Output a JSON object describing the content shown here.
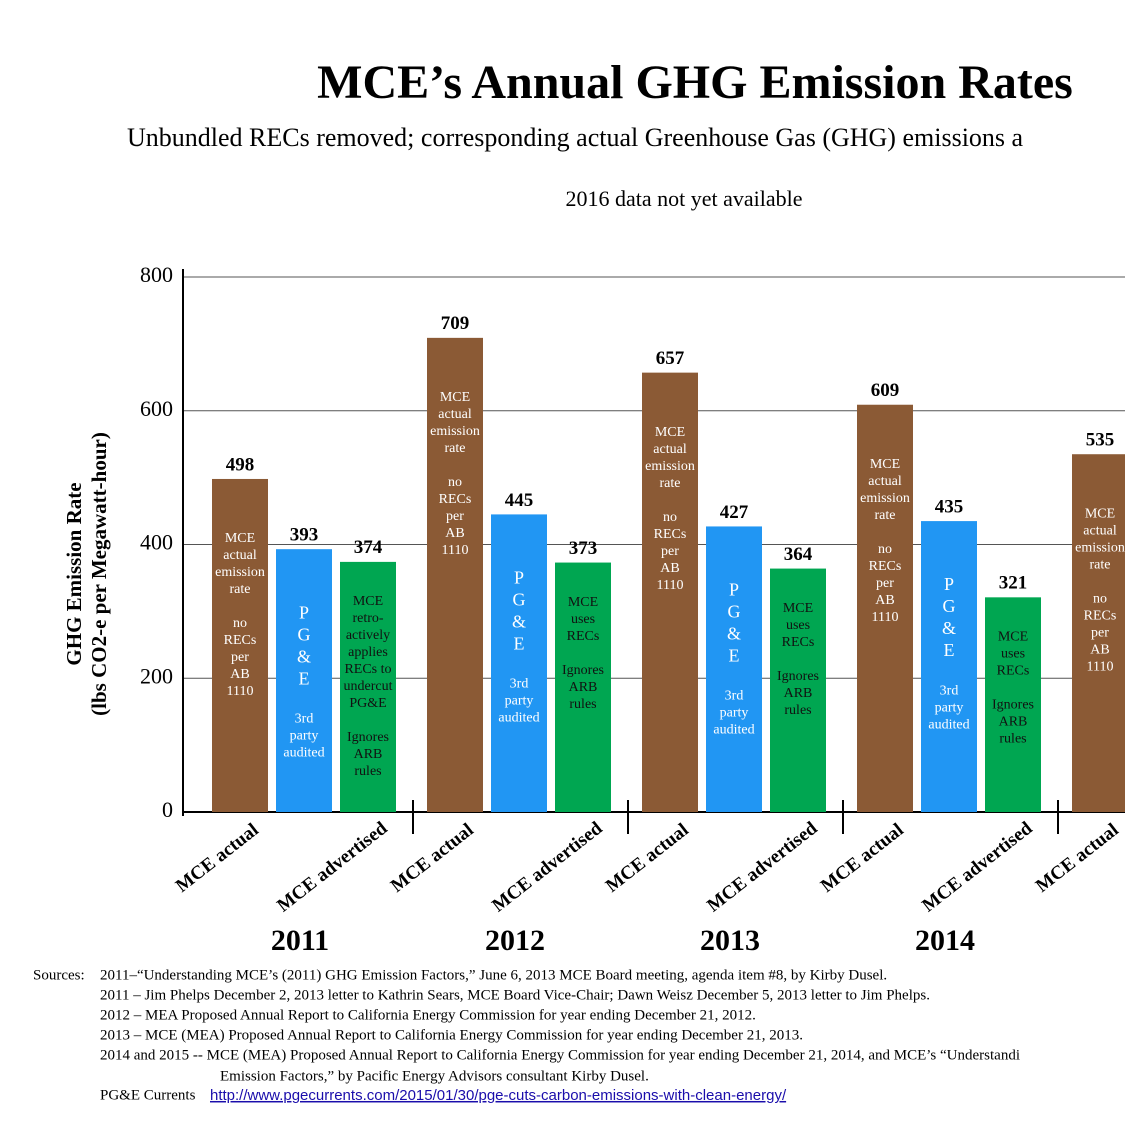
{
  "chart_data": {
    "type": "bar",
    "title": "MCE’s Annual GHG Emission Rates",
    "subtitle": "Unbundled RECs removed; corresponding actual Greenhouse Gas (GHG) emissions a",
    "note": "2016 data not yet available",
    "y_label": [
      "GHG Emission Rate",
      "(lbs CO2-e per Megawatt-hour)"
    ],
    "categories": [
      "2011",
      "2012",
      "2013",
      "2014",
      null
    ],
    "x_sublabels": [
      "MCE  actual",
      "MCE advertised"
    ],
    "series": [
      {
        "color": "#8b5a35",
        "text_color": "#ffffff",
        "values": [
          498,
          709,
          657,
          609,
          535
        ],
        "bar_text": [
          [
            [
              "MCE",
              "actual",
              "emission",
              "rate"
            ],
            [
              "no",
              "RECs",
              "per",
              "AB",
              "1110"
            ]
          ],
          [
            [
              "MCE",
              "actual",
              "emission",
              "rate"
            ],
            [
              "no",
              "RECs",
              "per",
              "AB",
              "1110"
            ]
          ],
          [
            [
              "MCE",
              "actual",
              "emission",
              "rate"
            ],
            [
              "no",
              "RECs",
              "per",
              "AB",
              "1110"
            ]
          ],
          [
            [
              "MCE",
              "actual",
              "emission",
              "rate"
            ],
            [
              "no",
              "RECs",
              "per",
              "AB",
              "1110"
            ]
          ],
          [
            [
              "MCE",
              "actual",
              "emission",
              "rate"
            ],
            [
              "no",
              "RECs",
              "per",
              "AB",
              "1110"
            ]
          ]
        ]
      },
      {
        "color": "#2196f3",
        "text_color": "#ffffff",
        "values": [
          393,
          445,
          427,
          435,
          null
        ],
        "bar_text": [
          [
            [
              "P",
              "G",
              "&",
              "E"
            ],
            [
              "3rd",
              "party",
              "audited"
            ]
          ],
          [
            [
              "P",
              "G",
              "&",
              "E"
            ],
            [
              "3rd",
              "party",
              "audited"
            ]
          ],
          [
            [
              "P",
              "G",
              "&",
              "E"
            ],
            [
              "3rd",
              "party",
              "audited"
            ]
          ],
          [
            [
              "P",
              "G",
              "&",
              "E"
            ],
            [
              "3rd",
              "party",
              "audited"
            ]
          ],
          null
        ]
      },
      {
        "color": "#00a651",
        "text_color": "#111111",
        "values": [
          374,
          373,
          364,
          321,
          null
        ],
        "bar_text": [
          [
            [
              "MCE",
              "retro-",
              "actively",
              "applies",
              "RECs to",
              "undercut",
              "PG&E"
            ],
            [
              "Ignores",
              "ARB",
              "rules"
            ]
          ],
          [
            [
              "MCE",
              "uses",
              "RECs"
            ],
            [
              "Ignores",
              "ARB",
              "rules"
            ]
          ],
          [
            [
              "MCE",
              "uses",
              "RECs"
            ],
            [
              "Ignores",
              "ARB",
              "rules"
            ]
          ],
          [
            [
              "MCE",
              "uses",
              "RECs"
            ],
            [
              "Ignores",
              "ARB",
              "rules"
            ]
          ],
          null
        ]
      }
    ],
    "ylim": [
      0,
      800
    ],
    "yticks": [
      0,
      200,
      400,
      600,
      800
    ],
    "grid": true
  },
  "sources": {
    "label": "Sources:",
    "lines": [
      "2011–“Understanding MCE’s (2011) GHG Emission Factors,” June 6, 2013 MCE Board meeting, agenda item #8, by Kirby Dusel.",
      "2011 – Jim Phelps December 2, 2013 letter to Kathrin Sears, MCE Board Vice-Chair;  Dawn Weisz December 5, 2013 letter to Jim Phelps.",
      "2012 – MEA Proposed Annual Report to California Energy Commission for year ending December 21, 2012.",
      "2013 – MCE (MEA) Proposed Annual Report to California Energy Commission for year ending December 21, 2013.",
      "2014 and 2015  -- MCE (MEA) Proposed Annual Report to California Energy Commission for year ending December 21, 2014, and MCE’s “Understandi",
      "Emission Factors,” by Pacific Energy Advisors consultant Kirby Dusel."
    ],
    "link_prefix": "PG&E Currents",
    "link": "http://www.pgecurrents.com/2015/01/30/pge-cuts-carbon-emissions-with-clean-energy/"
  }
}
